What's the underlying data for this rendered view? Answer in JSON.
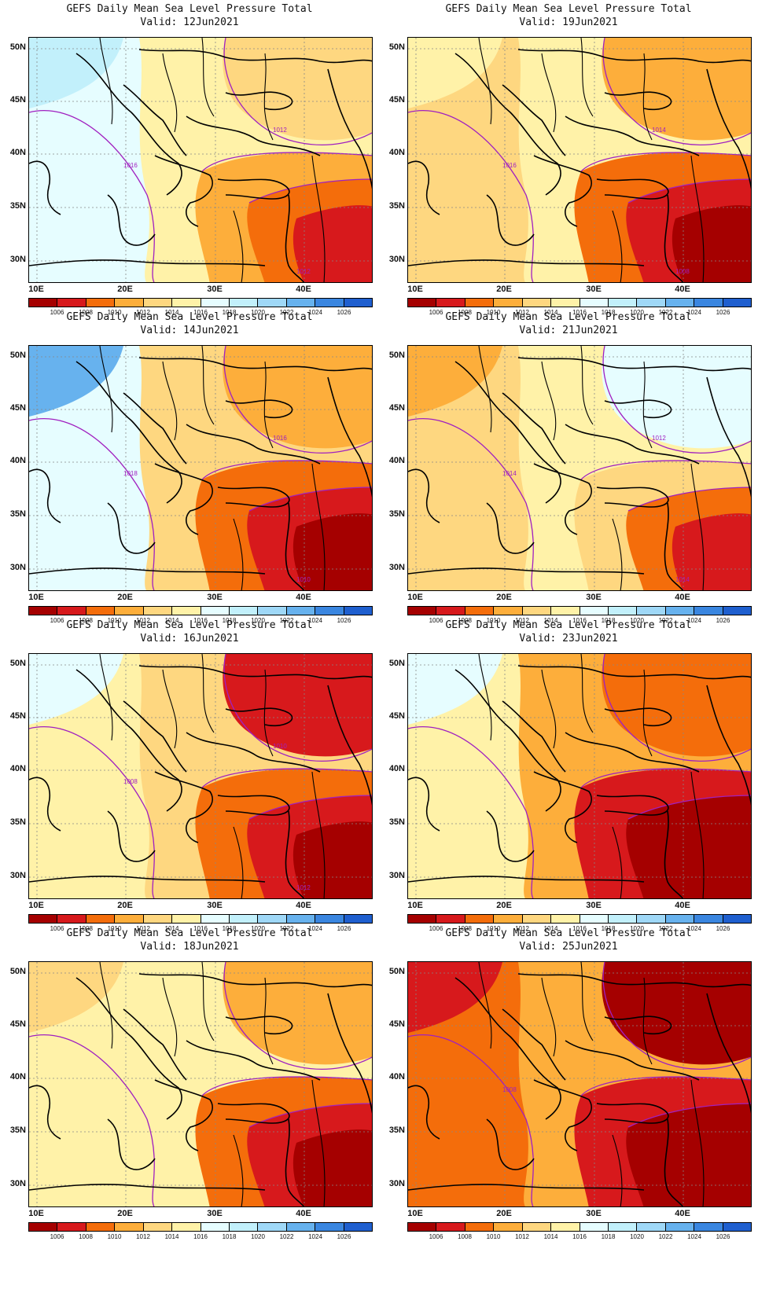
{
  "colorbar": {
    "labels": [
      "1006",
      "1008",
      "1010",
      "1012",
      "1014",
      "1016",
      "1018",
      "1020",
      "1022",
      "1024",
      "1026"
    ],
    "colors": [
      "#a50000",
      "#d7191c",
      "#f46d0b",
      "#fdae3b",
      "#fed780",
      "#fff2a8",
      "#e6fdff",
      "#c2f0fb",
      "#9fd8f7",
      "#67b2ee",
      "#3a86e0",
      "#1f5fcf"
    ]
  },
  "axes": {
    "lat_labels": [
      "50N",
      "45N",
      "40N",
      "35N",
      "30N"
    ],
    "lon_labels": [
      "10E",
      "20E",
      "30E",
      "40E"
    ]
  },
  "panels": [
    {
      "title": "GEFS Daily Mean Sea Level Pressure Total",
      "valid": "Valid:  12Jun2021",
      "contour_labels": [
        "1016",
        "1012",
        "1012"
      ],
      "regions": {
        "west": "#e6fdff",
        "northwest": "#c2f0fb",
        "central": "#fff2a8",
        "north": "#fed780",
        "east": "#fdae3b",
        "southeast": "#f46d0b",
        "deep": "#d7191c"
      }
    },
    {
      "title": "GEFS Daily Mean Sea Level Pressure Total",
      "valid": "Valid:  19Jun2021",
      "contour_labels": [
        "1016",
        "1014",
        "1008"
      ],
      "regions": {
        "west": "#fed780",
        "northwest": "#fff2a8",
        "central": "#fff2a8",
        "north": "#fdae3b",
        "east": "#f46d0b",
        "southeast": "#d7191c",
        "deep": "#a50000"
      }
    },
    {
      "title": "GEFS Daily Mean Sea Level Pressure Total",
      "valid": "Valid:  14Jun2021",
      "contour_labels": [
        "1018",
        "1016",
        "1010"
      ],
      "regions": {
        "west": "#e6fdff",
        "northwest": "#67b2ee",
        "central": "#fed780",
        "north": "#fdae3b",
        "east": "#f46d0b",
        "southeast": "#d7191c",
        "deep": "#a50000"
      }
    },
    {
      "title": "GEFS Daily Mean Sea Level Pressure Total",
      "valid": "Valid:  21Jun2021",
      "contour_labels": [
        "1014",
        "1012",
        "1014"
      ],
      "regions": {
        "west": "#fed780",
        "northwest": "#fdae3b",
        "central": "#fff2a8",
        "north": "#e6fdff",
        "east": "#fed780",
        "southeast": "#f46d0b",
        "deep": "#d7191c"
      }
    },
    {
      "title": "GEFS Daily Mean Sea Level Pressure Total",
      "valid": "Valid:  16Jun2021",
      "contour_labels": [
        "1008",
        "1010",
        "1012"
      ],
      "regions": {
        "west": "#fff2a8",
        "northwest": "#e6fdff",
        "central": "#fed780",
        "north": "#d7191c",
        "east": "#f46d0b",
        "southeast": "#d7191c",
        "deep": "#a50000"
      }
    },
    {
      "title": "GEFS Daily Mean Sea Level Pressure Total",
      "valid": "Valid:  23Jun2021",
      "contour_labels": [],
      "regions": {
        "west": "#fff2a8",
        "northwest": "#e6fdff",
        "central": "#fdae3b",
        "north": "#f46d0b",
        "east": "#d7191c",
        "southeast": "#a50000",
        "deep": "#a50000"
      }
    },
    {
      "title": "GEFS Daily Mean Sea Level Pressure Total",
      "valid": "Valid:  18Jun2021",
      "contour_labels": [],
      "regions": {
        "west": "#fff2a8",
        "northwest": "#fed780",
        "central": "#fff2a8",
        "north": "#fdae3b",
        "east": "#f46d0b",
        "southeast": "#d7191c",
        "deep": "#a50000"
      }
    },
    {
      "title": "GEFS Daily Mean Sea Level Pressure Total",
      "valid": "Valid:  25Jun2021",
      "contour_labels": [
        "1008"
      ],
      "regions": {
        "west": "#f46d0b",
        "northwest": "#d7191c",
        "central": "#fdae3b",
        "north": "#a50000",
        "east": "#d7191c",
        "southeast": "#a50000",
        "deep": "#a50000"
      }
    }
  ]
}
